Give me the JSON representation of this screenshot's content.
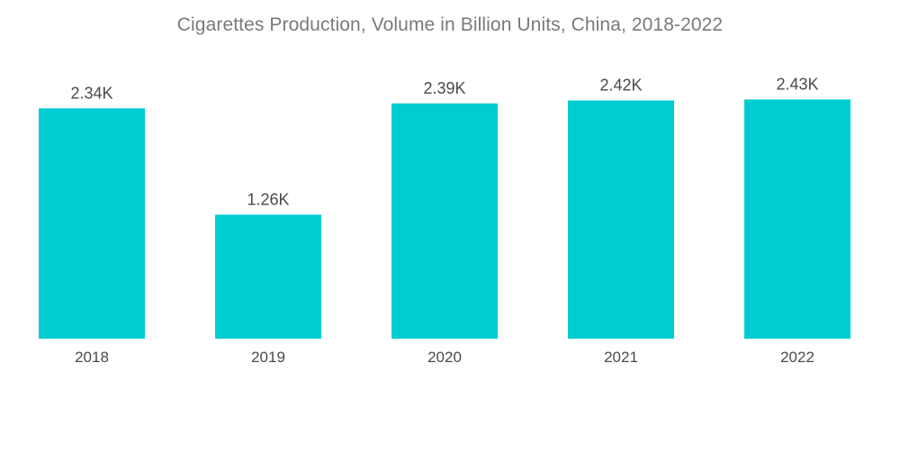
{
  "chart_data": {
    "type": "bar",
    "title": "Cigarettes Production, Volume in Billion Units, China, 2018-2022",
    "xlabel": "",
    "ylabel": "",
    "categories": [
      "2018",
      "2019",
      "2020",
      "2021",
      "2022"
    ],
    "values": [
      2340,
      1260,
      2390,
      2420,
      2430
    ],
    "data_labels": [
      "2.34K",
      "1.26K",
      "2.39K",
      "2.42K",
      "2.43K"
    ],
    "ylim": [
      0,
      2800
    ],
    "grid": false,
    "legend": "none",
    "bar_color": "#00cdd1"
  }
}
